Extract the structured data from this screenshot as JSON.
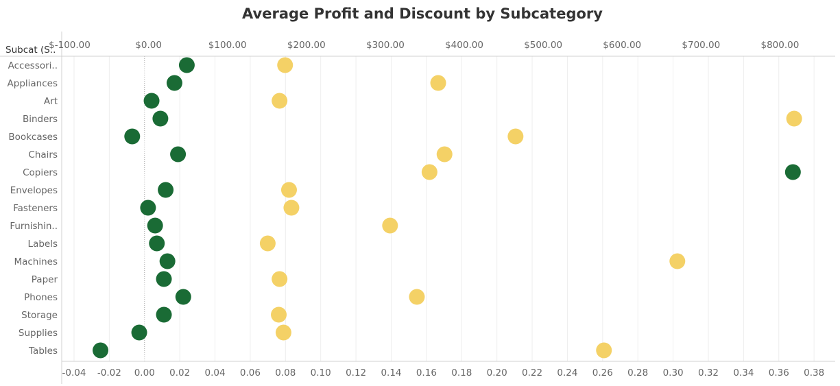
{
  "chart_data": {
    "type": "scatter",
    "title": "Average Profit and Discount by Subcategory",
    "row_header": "Subcat (S..",
    "categories": [
      "Accessori..",
      "Appliances",
      "Art",
      "Binders",
      "Bookcases",
      "Chairs",
      "Copiers",
      "Envelopes",
      "Fasteners",
      "Furnishin..",
      "Labels",
      "Machines",
      "Paper",
      "Phones",
      "Storage",
      "Supplies",
      "Tables"
    ],
    "top_axis": {
      "ticks": [
        -100,
        0,
        100,
        200,
        300,
        400,
        500,
        600,
        700,
        800
      ],
      "tick_labels": [
        "$-100.00",
        "$0.00",
        "$100.00",
        "$200.00",
        "$300.00",
        "$400.00",
        "$500.00",
        "$600.00",
        "$700.00",
        "$800.00"
      ],
      "range": [
        -110,
        870
      ]
    },
    "bottom_axis": {
      "ticks": [
        -0.04,
        -0.02,
        0.0,
        0.02,
        0.04,
        0.06,
        0.08,
        0.1,
        0.12,
        0.14,
        0.16,
        0.18,
        0.2,
        0.22,
        0.24,
        0.26,
        0.28,
        0.3,
        0.32,
        0.34,
        0.36,
        0.38
      ],
      "tick_labels": [
        "-0.04",
        "-0.02",
        "0.00",
        "0.02",
        "0.04",
        "0.06",
        "0.08",
        "0.10",
        "0.12",
        "0.14",
        "0.16",
        "0.18",
        "0.20",
        "0.22",
        "0.24",
        "0.26",
        "0.28",
        "0.30",
        "0.32",
        "0.34",
        "0.36",
        "0.38"
      ],
      "range": [
        -0.047,
        0.392
      ]
    },
    "series": [
      {
        "axis": "bottom",
        "color": "#1a6b35",
        "values": [
          0.024,
          0.017,
          0.004,
          0.009,
          -0.007,
          0.019,
          0.368,
          0.012,
          0.002,
          0.006,
          0.007,
          0.013,
          0.011,
          0.022,
          0.011,
          -0.003,
          -0.025
        ]
      },
      {
        "axis": "top",
        "color": "#f4d166",
        "values": [
          173,
          367,
          166,
          818,
          465,
          375,
          356,
          178,
          181,
          306,
          151,
          670,
          166,
          340,
          165,
          171,
          577
        ]
      }
    ],
    "grid": true,
    "legend": "none"
  }
}
